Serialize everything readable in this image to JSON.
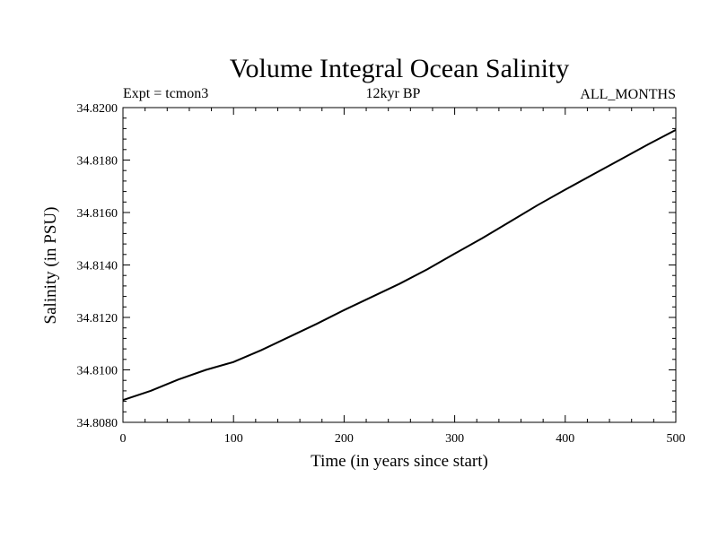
{
  "chart_data": {
    "type": "line",
    "title": "Volume Integral Ocean Salinity",
    "subtitle_left": "Expt = tcmon3",
    "subtitle_center": "12kyr BP",
    "subtitle_right": "ALL_MONTHS",
    "xlabel": "Time (in years since start)",
    "ylabel": "Salinity (in PSU)",
    "xlim": [
      0,
      500
    ],
    "ylim": [
      34.808,
      34.82
    ],
    "x_ticks": [
      0,
      100,
      200,
      300,
      400,
      500
    ],
    "x_tick_labels": [
      "0",
      "100",
      "200",
      "300",
      "400",
      "500"
    ],
    "y_ticks": [
      34.808,
      34.81,
      34.812,
      34.814,
      34.816,
      34.818,
      34.82
    ],
    "y_tick_labels": [
      "34.8080",
      "34.8100",
      "34.8120",
      "34.8140",
      "34.8160",
      "34.8180",
      "34.8200"
    ],
    "grid": false,
    "line_color": "#000000",
    "series": [
      {
        "x": [
          0,
          25,
          50,
          75,
          100,
          125,
          150,
          175,
          200,
          225,
          250,
          275,
          300,
          325,
          350,
          375,
          400,
          425,
          450,
          475,
          500
        ],
        "values": [
          34.80885,
          34.8092,
          34.80963,
          34.81,
          34.8103,
          34.81075,
          34.81125,
          34.81175,
          34.81228,
          34.81278,
          34.81328,
          34.81383,
          34.81443,
          34.81502,
          34.81565,
          34.81628,
          34.81687,
          34.81745,
          34.81802,
          34.8186,
          34.81915
        ]
      }
    ]
  }
}
